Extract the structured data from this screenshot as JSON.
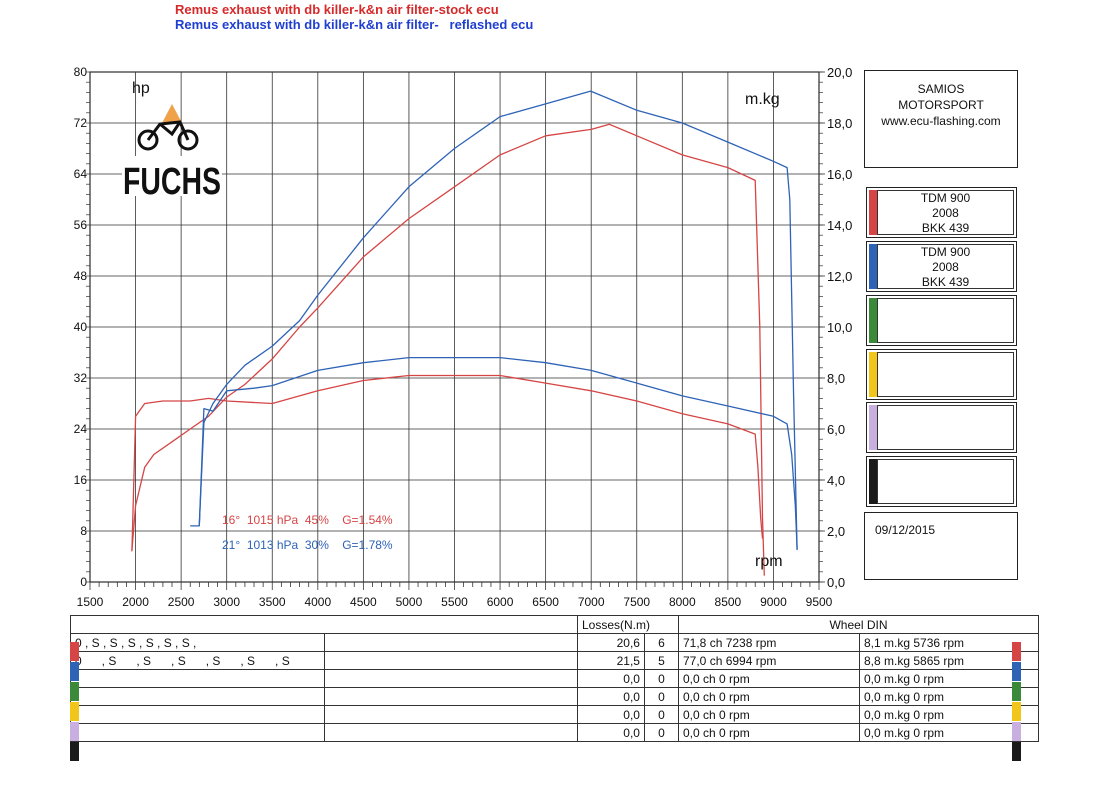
{
  "header": {
    "line1": "Remus exhaust with db killer-k&n air filter-stock ecu",
    "line2": "Remus exhaust with db killer-k&n air filter-   reflashed ecu"
  },
  "colors": {
    "red_run": "#d64545",
    "blue_run": "#2e63b6"
  },
  "chart_data": {
    "type": "line",
    "x_axis": {
      "label": "rpm",
      "range": [
        1500,
        9500
      ],
      "ticks": [
        "1500",
        "2000",
        "2500",
        "3000",
        "3500",
        "4000",
        "4500",
        "5000",
        "5500",
        "6000",
        "6500",
        "7000",
        "7500",
        "8000",
        "8500",
        "9000",
        "9500"
      ]
    },
    "y_left": {
      "label": "hp",
      "range": [
        0,
        80
      ],
      "ticks": [
        "0",
        "8",
        "16",
        "24",
        "32",
        "40",
        "48",
        "56",
        "64",
        "72",
        "80"
      ]
    },
    "y_right": {
      "label": "m.kg",
      "range": [
        0,
        20
      ],
      "ticks": [
        "0,0",
        "2,0",
        "4,0",
        "6,0",
        "8,0",
        "10,0",
        "12,0",
        "14,0",
        "16,0",
        "18,0",
        "20,0"
      ]
    },
    "grid": true,
    "series": [
      {
        "color": "#d64545",
        "axis": "left",
        "points": [
          [
            1960,
            5
          ],
          [
            2000,
            12
          ],
          [
            2100,
            18
          ],
          [
            2200,
            20
          ],
          [
            2400,
            22
          ],
          [
            2600,
            24
          ],
          [
            2800,
            26
          ],
          [
            3000,
            29
          ],
          [
            3200,
            31
          ],
          [
            3500,
            35
          ],
          [
            3800,
            40
          ],
          [
            4000,
            43
          ],
          [
            4500,
            51
          ],
          [
            5000,
            57
          ],
          [
            5500,
            62
          ],
          [
            6000,
            67
          ],
          [
            6500,
            70
          ],
          [
            7000,
            71
          ],
          [
            7200,
            71.8
          ],
          [
            7500,
            70
          ],
          [
            8000,
            67
          ],
          [
            8500,
            65
          ],
          [
            8800,
            63
          ],
          [
            8850,
            40
          ],
          [
            8880,
            10
          ],
          [
            8900,
            1
          ]
        ]
      },
      {
        "color": "#d64545",
        "axis": "right",
        "points": [
          [
            1960,
            1.2
          ],
          [
            2000,
            6.5
          ],
          [
            2100,
            7.0
          ],
          [
            2300,
            7.1
          ],
          [
            2600,
            7.1
          ],
          [
            2800,
            7.2
          ],
          [
            3000,
            7.1
          ],
          [
            3500,
            7.0
          ],
          [
            4000,
            7.5
          ],
          [
            4500,
            7.9
          ],
          [
            5000,
            8.1
          ],
          [
            5736,
            8.1
          ],
          [
            6000,
            8.1
          ],
          [
            6500,
            7.8
          ],
          [
            7000,
            7.5
          ],
          [
            7500,
            7.1
          ],
          [
            8000,
            6.6
          ],
          [
            8500,
            6.2
          ],
          [
            8800,
            5.8
          ],
          [
            8830,
            4.5
          ],
          [
            8860,
            2.5
          ],
          [
            8880,
            1.7
          ]
        ]
      },
      {
        "color": "#2e63b6",
        "axis": "left",
        "points": [
          [
            2700,
            9
          ],
          [
            2750,
            25
          ],
          [
            2850,
            28
          ],
          [
            3000,
            31
          ],
          [
            3200,
            34
          ],
          [
            3500,
            37
          ],
          [
            3800,
            41
          ],
          [
            4000,
            45
          ],
          [
            4500,
            54
          ],
          [
            5000,
            62
          ],
          [
            5500,
            68
          ],
          [
            6000,
            73
          ],
          [
            6500,
            75
          ],
          [
            6994,
            77
          ],
          [
            7500,
            74
          ],
          [
            8000,
            72
          ],
          [
            8500,
            69
          ],
          [
            9000,
            66
          ],
          [
            9150,
            65
          ],
          [
            9180,
            60
          ],
          [
            9220,
            30
          ],
          [
            9260,
            5
          ]
        ]
      },
      {
        "color": "#2e63b6",
        "axis": "right",
        "points": [
          [
            2600,
            2.2
          ],
          [
            2700,
            2.2
          ],
          [
            2750,
            6.8
          ],
          [
            2850,
            6.7
          ],
          [
            3000,
            7.5
          ],
          [
            3300,
            7.6
          ],
          [
            3500,
            7.7
          ],
          [
            4000,
            8.3
          ],
          [
            4500,
            8.6
          ],
          [
            5000,
            8.8
          ],
          [
            5865,
            8.8
          ],
          [
            6000,
            8.8
          ],
          [
            6500,
            8.6
          ],
          [
            7000,
            8.3
          ],
          [
            7500,
            7.8
          ],
          [
            8000,
            7.3
          ],
          [
            8500,
            6.9
          ],
          [
            9000,
            6.5
          ],
          [
            9150,
            6.2
          ],
          [
            9200,
            5.0
          ],
          [
            9240,
            3.0
          ],
          [
            9260,
            1.3
          ]
        ]
      }
    ],
    "annotations": [
      {
        "text": "16°  1015 hPa  45%    G=1.54%",
        "color": "#d64545"
      },
      {
        "text": "21°  1013 hPa  30%    G=1.78%",
        "color": "#2e63b6"
      }
    ]
  },
  "logo": {
    "text": "FUCHS"
  },
  "shop": {
    "line1": "SAMIOS",
    "line2": "MOTORSPORT",
    "line3": "www.ecu-flashing.com"
  },
  "runs": [
    {
      "color": "#d64545",
      "model": "TDM 900",
      "year": "2008",
      "code": "BKK 439"
    },
    {
      "color": "#2e63b6",
      "model": "TDM 900",
      "year": "2008",
      "code": "BKK 439"
    },
    {
      "color": "#3a8a3a",
      "model": "",
      "year": "",
      "code": ""
    },
    {
      "color": "#f2c51b",
      "model": "",
      "year": "",
      "code": ""
    },
    {
      "color": "#c9aee0",
      "model": "",
      "year": "",
      "code": ""
    },
    {
      "color": "#1a1a1a",
      "model": "",
      "year": "",
      "code": ""
    }
  ],
  "date": "09/12/2015",
  "results": {
    "header": {
      "losses": "Losses(N.m)",
      "wheel": "Wheel DIN"
    },
    "rows": [
      {
        "color": "#d64545",
        "label": "0 , S , S , S , S , S , S ,",
        "loss": "20,6",
        "n": "6",
        "power": "71,8 ch 7238 rpm",
        "torque": "8,1 m.kg 5736 rpm"
      },
      {
        "color": "#2e63b6",
        "label": "0      , S      , S      , S      , S      , S      , S",
        "loss": "21,5",
        "n": "5",
        "power": "77,0 ch 6994 rpm",
        "torque": "8,8 m.kg 5865 rpm"
      },
      {
        "color": "#3a8a3a",
        "label": "",
        "loss": "0,0",
        "n": "0",
        "power": "0,0 ch 0 rpm",
        "torque": "0,0 m.kg 0 rpm"
      },
      {
        "color": "#f2c51b",
        "label": "",
        "loss": "0,0",
        "n": "0",
        "power": "0,0 ch 0 rpm",
        "torque": "0,0 m.kg 0 rpm"
      },
      {
        "color": "#c9aee0",
        "label": "",
        "loss": "0,0",
        "n": "0",
        "power": "0,0 ch 0 rpm",
        "torque": "0,0 m.kg 0 rpm"
      },
      {
        "color": "#1a1a1a",
        "label": "",
        "loss": "0,0",
        "n": "0",
        "power": "0,0 ch 0 rpm",
        "torque": "0,0 m.kg 0 rpm"
      }
    ]
  }
}
